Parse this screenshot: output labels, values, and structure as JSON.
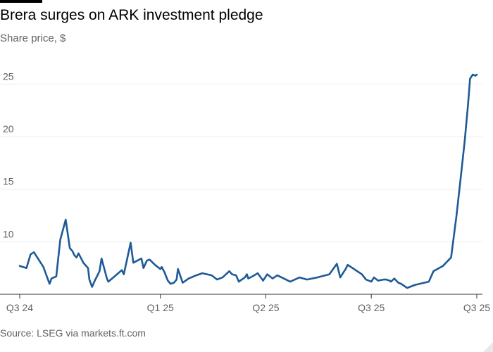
{
  "title": "Brera surges on ARK investment pledge",
  "subtitle": "Share price, $",
  "source": "Source: LSEG via markets.ft.com",
  "colors": {
    "line": "#1E5A96",
    "grid": "#EDEDED",
    "axis": "#333333",
    "text": "#66605C"
  },
  "chart_data": {
    "type": "line",
    "title": "Brera surges on ARK investment pledge",
    "subtitle": "Share price, $",
    "xlabel": "",
    "ylabel": "",
    "ylim": [
      5,
      26.5
    ],
    "grid": true,
    "xlim": [
      0,
      1
    ],
    "yticks": [
      10,
      15,
      20,
      25
    ],
    "yticklabels": [
      "10",
      "15",
      "20",
      "25"
    ],
    "xticks": [
      0,
      0.3077,
      0.5385,
      0.7692,
      1
    ],
    "xticklabels": [
      "Q3 24",
      "Q1 25",
      "Q2 25",
      "Q3 25",
      "Q3 25"
    ],
    "series": [
      {
        "name": "",
        "x": [
          0,
          0.0148,
          0.0237,
          0.0311,
          0.0518,
          0.0652,
          0.0696,
          0.0799,
          0.0888,
          0.1006,
          0.1095,
          0.1154,
          0.1198,
          0.1243,
          0.1287,
          0.1391,
          0.1494,
          0.1524,
          0.1583,
          0.1642,
          0.1701,
          0.1746,
          0.179,
          0.1908,
          0.1938,
          0.2101,
          0.2234,
          0.2278,
          0.2338,
          0.2427,
          0.2485,
          0.2663,
          0.2708,
          0.2782,
          0.2841,
          0.2959,
          0.3077,
          0.3107,
          0.3166,
          0.324,
          0.3299,
          0.3373,
          0.3432,
          0.3462,
          0.3565,
          0.3698,
          0.3861,
          0.3994,
          0.4201,
          0.4319,
          0.4438,
          0.4586,
          0.4645,
          0.4734,
          0.4793,
          0.4926,
          0.497,
          0.5,
          0.5089,
          0.5207,
          0.5325,
          0.5414,
          0.5533,
          0.5636,
          0.5917,
          0.6124,
          0.6287,
          0.6509,
          0.6775,
          0.6938,
          0.7012,
          0.713,
          0.7175,
          0.7485,
          0.7574,
          0.7692,
          0.7751,
          0.784,
          0.7959,
          0.8018,
          0.8092,
          0.8121,
          0.8195,
          0.8284,
          0.8343,
          0.8476,
          0.8654,
          0.895,
          0.9053,
          0.926,
          0.9438,
          0.9556,
          0.9645,
          0.9734,
          0.9808,
          0.9852,
          0.9911,
          0.997,
          1.0
        ],
        "values": [
          7.7,
          7.5,
          8.8,
          9.0,
          7.6,
          6.0,
          6.5,
          6.7,
          10.2,
          12.1,
          9.4,
          9.1,
          8.7,
          8.5,
          8.9,
          8.0,
          7.5,
          6.4,
          5.7,
          6.3,
          6.8,
          7.2,
          8.4,
          6.5,
          6.2,
          6.8,
          7.3,
          6.9,
          8.1,
          9.9,
          8.0,
          8.4,
          7.5,
          8.2,
          8.3,
          7.8,
          7.4,
          7.6,
          7.1,
          6.3,
          6.0,
          6.1,
          6.4,
          7.4,
          6.1,
          6.5,
          6.8,
          7.0,
          6.8,
          6.4,
          6.6,
          7.2,
          6.9,
          6.8,
          6.2,
          6.6,
          6.9,
          6.5,
          6.7,
          7.0,
          6.3,
          6.9,
          6.5,
          6.8,
          6.2,
          6.6,
          6.4,
          6.6,
          6.9,
          7.9,
          6.6,
          7.4,
          7.8,
          6.9,
          6.4,
          6.2,
          6.6,
          6.3,
          6.4,
          6.4,
          6.3,
          6.2,
          6.5,
          6.1,
          6.0,
          5.6,
          5.9,
          6.2,
          7.2,
          7.7,
          8.5,
          12.5,
          16.0,
          19.5,
          23.0,
          25.5,
          25.9,
          25.8,
          25.9
        ],
        "color": "#1E5A96"
      }
    ]
  }
}
